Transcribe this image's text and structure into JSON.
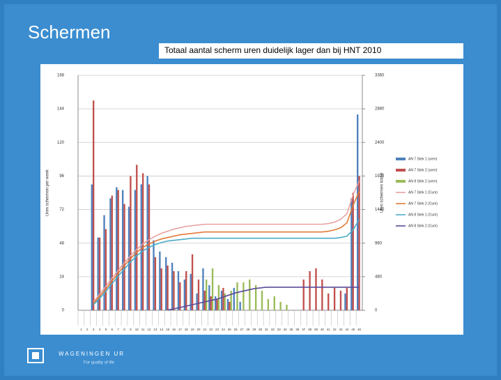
{
  "slide": {
    "title": "Schermen",
    "subtitle": "Totaal aantal scherm uren duidelijk lager dan bij HNT 2010",
    "logo": {
      "name": "WAGENINGEN UR",
      "tagline": "For quality of life"
    }
  },
  "chart_data": {
    "type": "combo",
    "y_label": "Uren schermen per week",
    "y2_label": "Uren schermen totaal",
    "categories": [
      "1",
      "2",
      "3",
      "4",
      "5",
      "6",
      "7",
      "8",
      "9",
      "10",
      "11",
      "12",
      "13",
      "14",
      "15",
      "16",
      "17",
      "18",
      "19",
      "20",
      "21",
      "22",
      "23",
      "24",
      "25",
      "26",
      "27",
      "28",
      "29",
      "30",
      "31",
      "32",
      "33",
      "34",
      "35",
      "36",
      "37",
      "38",
      "39",
      "40",
      "41",
      "42",
      "43",
      "44",
      "45",
      "46"
    ],
    "ylim": [
      0,
      168
    ],
    "yticks": [
      0,
      24,
      48,
      72,
      96,
      120,
      144,
      168
    ],
    "y2lim": [
      0,
      3360
    ],
    "y2ticks": [
      0,
      480,
      960,
      1440,
      1920,
      2400,
      2880,
      3360
    ],
    "grid": true,
    "legend": "right",
    "series": [
      {
        "name": "AN 7 Stek 1 (uren)",
        "type": "bar",
        "color": "#4f81bd",
        "values": [
          0,
          0,
          90,
          52,
          68,
          80,
          88,
          86,
          74,
          86,
          90,
          96,
          50,
          42,
          38,
          34,
          28,
          22,
          26,
          12,
          30,
          18,
          10,
          14,
          8,
          16,
          6,
          0,
          0,
          0,
          0,
          0,
          0,
          0,
          0,
          0,
          0,
          0,
          0,
          0,
          0,
          0,
          0,
          12,
          80,
          140
        ]
      },
      {
        "name": "AN 7 Stek 2 (uren)",
        "type": "bar",
        "color": "#c0504d",
        "values": [
          0,
          0,
          150,
          52,
          58,
          82,
          86,
          76,
          96,
          104,
          98,
          90,
          38,
          30,
          32,
          28,
          20,
          28,
          40,
          22,
          14,
          10,
          8,
          16,
          6,
          0,
          0,
          0,
          0,
          0,
          0,
          0,
          0,
          0,
          0,
          0,
          22,
          28,
          30,
          22,
          12,
          16,
          14,
          16,
          84,
          96
        ]
      },
      {
        "name": "AN 8 Stek 2 (uren)",
        "type": "bar",
        "color": "#9bbb59",
        "values": [
          0,
          0,
          0,
          0,
          0,
          0,
          0,
          0,
          0,
          0,
          0,
          0,
          0,
          0,
          0,
          0,
          0,
          0,
          0,
          0,
          22,
          30,
          18,
          12,
          14,
          20,
          20,
          22,
          18,
          14,
          8,
          10,
          6,
          4,
          0,
          0,
          0,
          0,
          0,
          0,
          0,
          0,
          0,
          0,
          0,
          0
        ]
      },
      {
        "name": "AN 7 Stek 1 (Cum)",
        "type": "line",
        "axis": "y2",
        "color": "#e6a0a0",
        "values": [
          null,
          null,
          120,
          230,
          340,
          460,
          570,
          680,
          780,
          870,
          950,
          1010,
          1060,
          1100,
          1130,
          1160,
          1180,
          1200,
          1210,
          1220,
          1230,
          1230,
          1230,
          1230,
          1230,
          1230,
          1230,
          1230,
          1230,
          1230,
          1230,
          1230,
          1230,
          1230,
          1230,
          1230,
          1230,
          1230,
          1230,
          1230,
          1240,
          1260,
          1300,
          1380,
          1650,
          1850
        ]
      },
      {
        "name": "AN 7 Stek 2 (Cum)",
        "type": "line",
        "axis": "y2",
        "color": "#e07b39",
        "values": [
          null,
          null,
          100,
          200,
          300,
          420,
          530,
          640,
          740,
          830,
          900,
          950,
          990,
          1020,
          1040,
          1060,
          1080,
          1090,
          1100,
          1110,
          1120,
          1120,
          1120,
          1120,
          1120,
          1120,
          1120,
          1120,
          1120,
          1120,
          1120,
          1120,
          1120,
          1120,
          1120,
          1120,
          1120,
          1120,
          1120,
          1120,
          1130,
          1150,
          1180,
          1250,
          1500,
          1700
        ]
      },
      {
        "name": "AN 8 Stek 1 (Cum)",
        "type": "line",
        "axis": "y2",
        "color": "#4bacc6",
        "values": [
          null,
          null,
          80,
          170,
          270,
          380,
          490,
          590,
          690,
          780,
          850,
          900,
          940,
          970,
          990,
          1000,
          1010,
          1020,
          1030,
          1030,
          1030,
          1030,
          1030,
          1030,
          1030,
          1030,
          1030,
          1030,
          1030,
          1030,
          1030,
          1030,
          1030,
          1030,
          1030,
          1030,
          1030,
          1030,
          1030,
          1030,
          1030,
          1030,
          1040,
          1060,
          1150,
          1300
        ]
      },
      {
        "name": "AN 8 Stek 2 (Cum)",
        "type": "line",
        "axis": "y2",
        "color": "#5b4a9a",
        "values": [
          null,
          null,
          null,
          null,
          null,
          null,
          null,
          null,
          null,
          null,
          null,
          null,
          null,
          null,
          5,
          20,
          40,
          60,
          80,
          100,
          120,
          140,
          160,
          190,
          220,
          250,
          270,
          290,
          310,
          320,
          330,
          330,
          330,
          330,
          330,
          330,
          330,
          330,
          330,
          330,
          330,
          330,
          330,
          330,
          330,
          330
        ]
      }
    ]
  }
}
